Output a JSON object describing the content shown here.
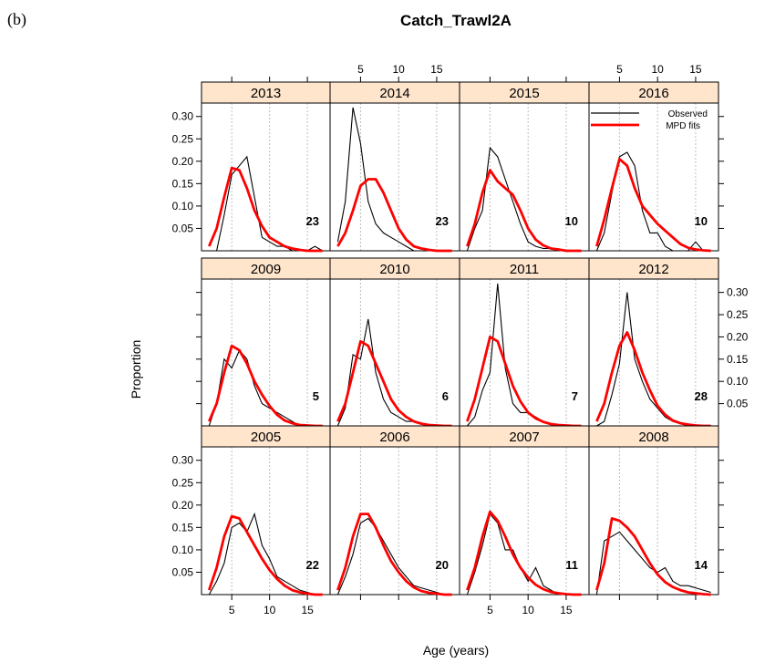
{
  "figure_label": "(b)",
  "chart_data": {
    "type": "line",
    "title": "Catch_Trawl2A",
    "xlabel": "Age (years)",
    "ylabel": "Proportion",
    "xlim": [
      1,
      18
    ],
    "ylim": [
      0,
      0.33
    ],
    "x_ticks": [
      5,
      10,
      15
    ],
    "y_ticks": [
      0.05,
      0.1,
      0.15,
      0.2,
      0.25,
      0.3
    ],
    "y_tick_labels": [
      "0.05",
      "0.10",
      "0.15",
      "0.20",
      "0.25",
      "0.30"
    ],
    "grid": "vertical dotted lines at ages 5, 10, 15",
    "legend": {
      "placement": "top-right of 2016 panel",
      "entries": [
        {
          "name": "Observed",
          "color": "#000000"
        },
        {
          "name": "MPD fits",
          "color": "#ff0000"
        }
      ]
    },
    "colors": {
      "observed": "#000000",
      "fit": "#ff0000",
      "strip": "#ffe5cc"
    },
    "ages": [
      2,
      3,
      4,
      5,
      6,
      7,
      8,
      9,
      10,
      11,
      12,
      13,
      14,
      15,
      16,
      17
    ],
    "panels": [
      {
        "year": "2013",
        "n": "23",
        "observed": [
          0.0,
          0.0,
          0.08,
          0.17,
          0.19,
          0.21,
          0.12,
          0.03,
          0.02,
          0.01,
          0.01,
          0.0,
          0.0,
          0.0,
          0.01,
          0.0
        ],
        "fit": [
          0.01,
          0.05,
          0.12,
          0.185,
          0.18,
          0.14,
          0.09,
          0.055,
          0.03,
          0.02,
          0.01,
          0.005,
          0.002,
          0.0,
          0.0,
          0.0
        ]
      },
      {
        "year": "2014",
        "n": "23",
        "observed": [
          0.02,
          0.11,
          0.32,
          0.24,
          0.11,
          0.06,
          0.04,
          0.03,
          0.02,
          0.01,
          0.0,
          0.0,
          0.0,
          0.0,
          0.0,
          0.0
        ],
        "fit": [
          0.01,
          0.04,
          0.09,
          0.145,
          0.16,
          0.16,
          0.13,
          0.09,
          0.05,
          0.025,
          0.01,
          0.005,
          0.002,
          0.0,
          0.0,
          0.0
        ]
      },
      {
        "year": "2015",
        "n": "10",
        "observed": [
          0.0,
          0.05,
          0.09,
          0.23,
          0.21,
          0.16,
          0.11,
          0.06,
          0.02,
          0.01,
          0.005,
          0.005,
          0.0,
          0.0,
          0.0,
          0.0
        ],
        "fit": [
          0.01,
          0.06,
          0.13,
          0.18,
          0.155,
          0.14,
          0.125,
          0.09,
          0.05,
          0.025,
          0.012,
          0.005,
          0.003,
          0.0,
          0.0,
          0.0
        ]
      },
      {
        "year": "2016",
        "n": "10",
        "observed": [
          0.0,
          0.04,
          0.13,
          0.21,
          0.22,
          0.19,
          0.09,
          0.04,
          0.04,
          0.01,
          0.0,
          0.0,
          0.0,
          0.02,
          0.0,
          0.0
        ],
        "fit": [
          0.01,
          0.07,
          0.14,
          0.205,
          0.19,
          0.14,
          0.1,
          0.08,
          0.06,
          0.045,
          0.03,
          0.015,
          0.007,
          0.003,
          0.001,
          0.0
        ]
      },
      {
        "year": "2009",
        "n": "5",
        "observed": [
          0.0,
          0.05,
          0.15,
          0.13,
          0.17,
          0.15,
          0.09,
          0.05,
          0.04,
          0.03,
          0.02,
          0.01,
          0.0,
          0.0,
          0.0,
          0.0
        ],
        "fit": [
          0.01,
          0.05,
          0.12,
          0.18,
          0.17,
          0.14,
          0.1,
          0.07,
          0.045,
          0.025,
          0.012,
          0.006,
          0.002,
          0.001,
          0.0,
          0.0
        ]
      },
      {
        "year": "2010",
        "n": "6",
        "observed": [
          0.0,
          0.04,
          0.16,
          0.15,
          0.24,
          0.12,
          0.06,
          0.03,
          0.02,
          0.01,
          0.01,
          0.005,
          0.0,
          0.0,
          0.0,
          0.0
        ],
        "fit": [
          0.01,
          0.05,
          0.12,
          0.19,
          0.18,
          0.14,
          0.1,
          0.06,
          0.035,
          0.02,
          0.01,
          0.005,
          0.002,
          0.001,
          0.0,
          0.0
        ]
      },
      {
        "year": "2011",
        "n": "7",
        "observed": [
          0.0,
          0.02,
          0.08,
          0.12,
          0.32,
          0.13,
          0.05,
          0.03,
          0.03,
          0.02,
          0.01,
          0.005,
          0.0,
          0.0,
          0.0,
          0.0
        ],
        "fit": [
          0.01,
          0.06,
          0.13,
          0.2,
          0.19,
          0.14,
          0.09,
          0.055,
          0.03,
          0.017,
          0.009,
          0.004,
          0.002,
          0.001,
          0.0,
          0.0
        ]
      },
      {
        "year": "2012",
        "n": "28",
        "observed": [
          0.0,
          0.01,
          0.07,
          0.14,
          0.3,
          0.15,
          0.1,
          0.06,
          0.04,
          0.02,
          0.01,
          0.005,
          0.0,
          0.0,
          0.0,
          0.0
        ],
        "fit": [
          0.01,
          0.05,
          0.12,
          0.18,
          0.21,
          0.17,
          0.12,
          0.08,
          0.045,
          0.025,
          0.012,
          0.006,
          0.003,
          0.001,
          0.0,
          0.0
        ]
      },
      {
        "year": "2005",
        "n": "22",
        "observed": [
          0.0,
          0.03,
          0.07,
          0.15,
          0.16,
          0.14,
          0.18,
          0.11,
          0.08,
          0.04,
          0.03,
          0.02,
          0.01,
          0.005,
          0.0,
          0.0
        ],
        "fit": [
          0.01,
          0.06,
          0.13,
          0.175,
          0.17,
          0.14,
          0.11,
          0.08,
          0.055,
          0.035,
          0.02,
          0.01,
          0.005,
          0.002,
          0.0,
          0.0
        ]
      },
      {
        "year": "2006",
        "n": "20",
        "observed": [
          0.0,
          0.04,
          0.09,
          0.16,
          0.17,
          0.15,
          0.12,
          0.09,
          0.06,
          0.04,
          0.02,
          0.015,
          0.01,
          0.005,
          0.0,
          0.0
        ],
        "fit": [
          0.01,
          0.06,
          0.13,
          0.18,
          0.18,
          0.15,
          0.11,
          0.075,
          0.05,
          0.03,
          0.016,
          0.008,
          0.004,
          0.002,
          0.0,
          0.0
        ]
      },
      {
        "year": "2007",
        "n": "11",
        "observed": [
          0.0,
          0.05,
          0.11,
          0.18,
          0.16,
          0.1,
          0.1,
          0.06,
          0.03,
          0.06,
          0.02,
          0.01,
          0.0,
          0.0,
          0.0,
          0.0
        ],
        "fit": [
          0.01,
          0.06,
          0.13,
          0.185,
          0.165,
          0.13,
          0.09,
          0.06,
          0.038,
          0.022,
          0.012,
          0.006,
          0.003,
          0.001,
          0.0,
          0.0
        ]
      },
      {
        "year": "2008",
        "n": "14",
        "observed": [
          0.0,
          0.12,
          0.13,
          0.14,
          0.12,
          0.1,
          0.08,
          0.06,
          0.05,
          0.06,
          0.03,
          0.02,
          0.02,
          0.015,
          0.01,
          0.005
        ],
        "fit": [
          0.01,
          0.07,
          0.17,
          0.165,
          0.15,
          0.13,
          0.1,
          0.07,
          0.045,
          0.028,
          0.017,
          0.01,
          0.005,
          0.003,
          0.001,
          0.0
        ]
      }
    ]
  }
}
